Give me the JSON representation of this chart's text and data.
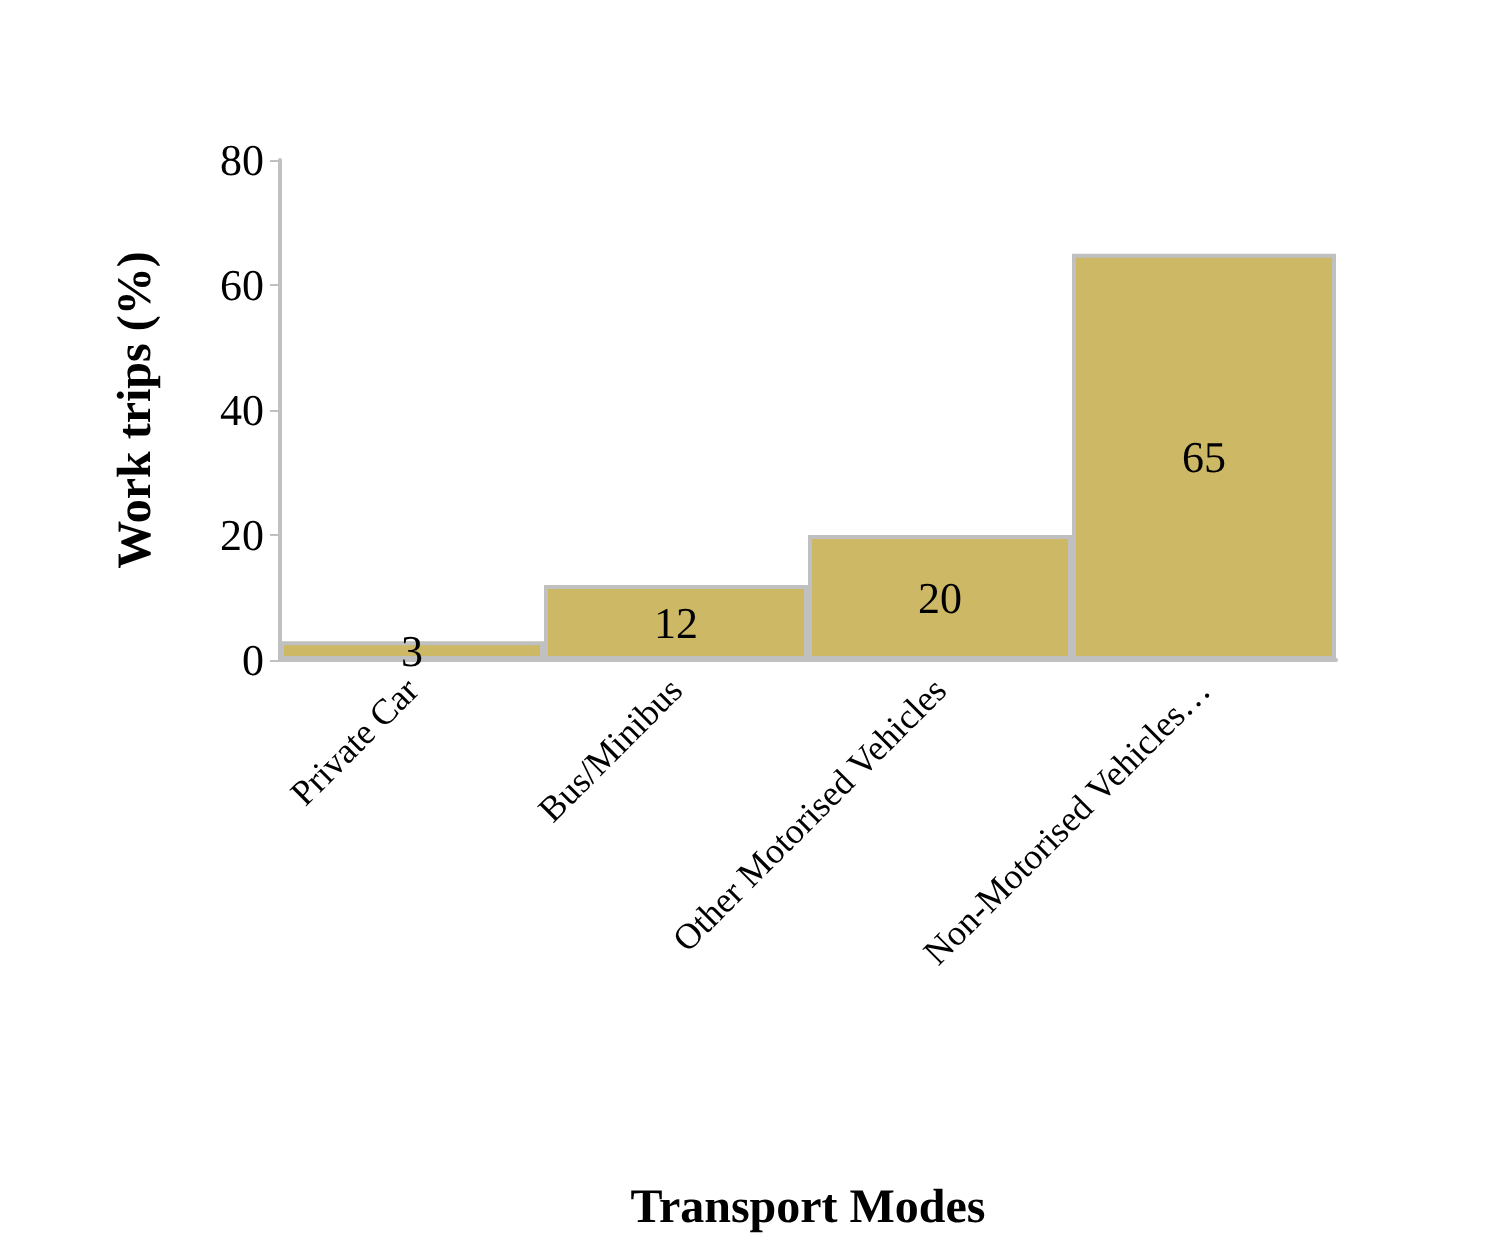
{
  "chart_data": {
    "type": "bar",
    "xlabel": "Transport Modes",
    "ylabel": "Work trips (%)",
    "categories": [
      "Private Car",
      "Bus/Minibus",
      "Other Motorised Vehicles",
      "Non-Motorised Vehicles…"
    ],
    "values": [
      3,
      12,
      20,
      65
    ],
    "color": "#cdb866",
    "ylim": [
      0,
      80
    ],
    "yticks": [
      0,
      20,
      40,
      60,
      80
    ],
    "grid": false,
    "data_labels": true
  }
}
